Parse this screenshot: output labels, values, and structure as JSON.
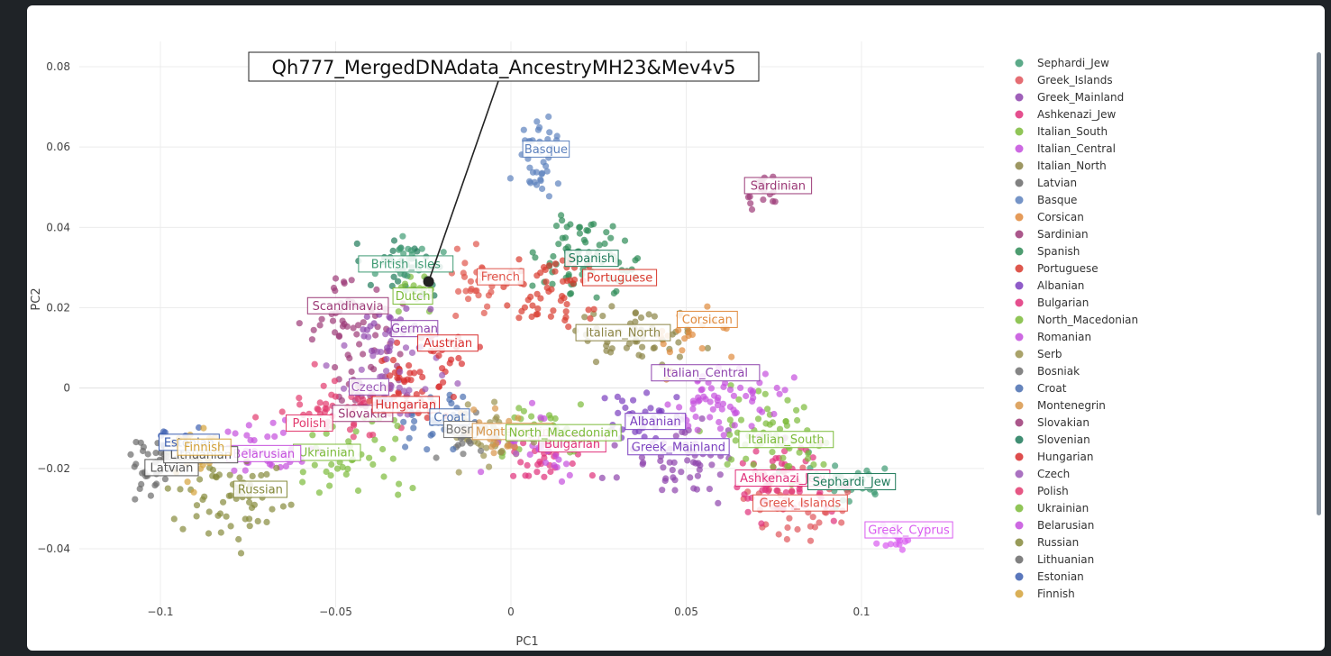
{
  "chart_data": {
    "type": "scatter",
    "xlabel": "PC1",
    "ylabel": "PC2",
    "xlim": [
      -0.125,
      0.135
    ],
    "ylim": [
      -0.05,
      0.085
    ],
    "x_ticks": [
      -0.1,
      -0.05,
      0,
      0.05,
      0.1
    ],
    "x_tick_labels": [
      "−0.1",
      "−0.05",
      "0",
      "0.05",
      "0.1"
    ],
    "y_ticks": [
      -0.04,
      -0.02,
      0,
      0.02,
      0.04,
      0.06,
      0.08
    ],
    "y_tick_labels": [
      "−0.04",
      "−0.02",
      "0",
      "0.02",
      "0.04",
      "0.06",
      "0.08"
    ],
    "grid": true,
    "legend_position": "right",
    "annotation": {
      "text": "Qh777_MergedDNAdata_AncestryMH23&Mev4v5",
      "point": [
        -0.0235,
        0.0265
      ]
    },
    "series": [
      {
        "name": "Sephardi_Jew",
        "color": "#3f9b74",
        "center": [
          0.095,
          -0.024
        ],
        "spread": [
          0.01,
          0.005
        ],
        "n": 30
      },
      {
        "name": "Greek_Islands",
        "color": "#e0545a",
        "center": [
          0.08,
          -0.029
        ],
        "spread": [
          0.01,
          0.006
        ],
        "n": 45
      },
      {
        "name": "Greek_Mainland",
        "color": "#8e44ad",
        "center": [
          0.048,
          -0.018
        ],
        "spread": [
          0.012,
          0.006
        ],
        "n": 55
      },
      {
        "name": "Ashkenazi_Jew",
        "color": "#e0307a",
        "center": [
          0.08,
          -0.024
        ],
        "spread": [
          0.011,
          0.006
        ],
        "n": 60
      },
      {
        "name": "Italian_South",
        "color": "#7cbb3a",
        "center": [
          0.075,
          -0.012
        ],
        "spread": [
          0.012,
          0.007
        ],
        "n": 60
      },
      {
        "name": "Italian_Central",
        "color": "#c44fdd",
        "center": [
          0.06,
          -0.004
        ],
        "spread": [
          0.012,
          0.006
        ],
        "n": 65
      },
      {
        "name": "Italian_North",
        "color": "#8c8546",
        "center": [
          0.035,
          0.012
        ],
        "spread": [
          0.012,
          0.006
        ],
        "n": 50
      },
      {
        "name": "Latvian",
        "color": "#6b6b6b",
        "center": [
          -0.103,
          -0.021
        ],
        "spread": [
          0.005,
          0.005
        ],
        "n": 18
      },
      {
        "name": "Basque",
        "color": "#5d81bd",
        "center": [
          0.008,
          0.058
        ],
        "spread": [
          0.005,
          0.007
        ],
        "n": 38
      },
      {
        "name": "Corsican",
        "color": "#e08a3c",
        "center": [
          0.05,
          0.012
        ],
        "spread": [
          0.008,
          0.006
        ],
        "n": 22
      },
      {
        "name": "Sardinian",
        "color": "#9c3a77",
        "center": [
          0.072,
          0.049
        ],
        "spread": [
          0.004,
          0.004
        ],
        "n": 20
      },
      {
        "name": "Spanish",
        "color": "#2e8b57",
        "center": [
          0.022,
          0.033
        ],
        "spread": [
          0.009,
          0.008
        ],
        "n": 75
      },
      {
        "name": "Portuguese",
        "color": "#d83a2e",
        "center": [
          0.012,
          0.024
        ],
        "spread": [
          0.01,
          0.008
        ],
        "n": 55
      },
      {
        "name": "Albanian",
        "color": "#7b3fbf",
        "center": [
          0.038,
          -0.008
        ],
        "spread": [
          0.008,
          0.005
        ],
        "n": 30
      },
      {
        "name": "Bulgarian",
        "color": "#e0307a",
        "center": [
          0.01,
          -0.017
        ],
        "spread": [
          0.01,
          0.005
        ],
        "n": 35
      },
      {
        "name": "North_Macedonian",
        "color": "#7cbb3a",
        "center": [
          0.01,
          -0.01
        ],
        "spread": [
          0.01,
          0.005
        ],
        "n": 40
      },
      {
        "name": "Romanian",
        "color": "#c44fdd",
        "center": [
          0.005,
          -0.014
        ],
        "spread": [
          0.011,
          0.005
        ],
        "n": 40
      },
      {
        "name": "Serb",
        "color": "#9b9350",
        "center": [
          -0.005,
          -0.012
        ],
        "spread": [
          0.008,
          0.005
        ],
        "n": 35
      },
      {
        "name": "Bosniak",
        "color": "#707070",
        "center": [
          -0.012,
          -0.012
        ],
        "spread": [
          0.006,
          0.005
        ],
        "n": 25
      },
      {
        "name": "Croat",
        "color": "#4a6fb0",
        "center": [
          -0.02,
          -0.008
        ],
        "spread": [
          0.007,
          0.005
        ],
        "n": 25
      },
      {
        "name": "Montenegrin",
        "color": "#d8964a",
        "center": [
          -0.005,
          -0.011
        ],
        "spread": [
          0.006,
          0.004
        ],
        "n": 20
      },
      {
        "name": "Slovakian",
        "color": "#9c3a77",
        "center": [
          -0.04,
          0.004
        ],
        "spread": [
          0.008,
          0.007
        ],
        "n": 35
      },
      {
        "name": "Slovenian",
        "color": "#1f7a5a",
        "center": [
          -0.03,
          0.03
        ],
        "spread": [
          0.008,
          0.005
        ],
        "n": 30
      },
      {
        "name": "Hungarian",
        "color": "#d82e2e",
        "center": [
          -0.03,
          0.0
        ],
        "spread": [
          0.01,
          0.008
        ],
        "n": 45
      },
      {
        "name": "Czech",
        "color": "#9b59b6",
        "center": [
          -0.035,
          0.003
        ],
        "spread": [
          0.01,
          0.008
        ],
        "n": 45
      },
      {
        "name": "Polish",
        "color": "#e23a6e",
        "center": [
          -0.05,
          -0.006
        ],
        "spread": [
          0.012,
          0.006
        ],
        "n": 45
      },
      {
        "name": "Ukrainian",
        "color": "#7cbb3a",
        "center": [
          -0.045,
          -0.016
        ],
        "spread": [
          0.012,
          0.007
        ],
        "n": 40
      },
      {
        "name": "Belarusian",
        "color": "#c44fdd",
        "center": [
          -0.07,
          -0.015
        ],
        "spread": [
          0.01,
          0.006
        ],
        "n": 35
      },
      {
        "name": "Russian",
        "color": "#868a3c",
        "center": [
          -0.08,
          -0.027
        ],
        "spread": [
          0.013,
          0.008
        ],
        "n": 60
      },
      {
        "name": "Lithuanian",
        "color": "#6a6a6a",
        "center": [
          -0.1,
          -0.018
        ],
        "spread": [
          0.005,
          0.004
        ],
        "n": 15
      },
      {
        "name": "Estonian",
        "color": "#3d5fb0",
        "center": [
          -0.095,
          -0.012
        ],
        "spread": [
          0.007,
          0.004
        ],
        "n": 15
      },
      {
        "name": "Finnish",
        "color": "#d4a23a",
        "center": [
          -0.09,
          -0.017
        ],
        "spread": [
          0.006,
          0.006
        ],
        "n": 28
      }
    ],
    "extra_clusters": [
      {
        "label": "Scandinavia",
        "color": "#9c3a77",
        "center": [
          -0.045,
          0.02
        ],
        "spread": [
          0.01,
          0.006
        ],
        "n": 40
      },
      {
        "label": "Dutch",
        "color": "#7cbb3a",
        "center": [
          -0.028,
          0.024
        ],
        "spread": [
          0.004,
          0.004
        ],
        "n": 14
      },
      {
        "label": "British_Isles",
        "color": "#3f9b74",
        "center": [
          -0.03,
          0.032
        ],
        "spread": [
          0.007,
          0.004
        ],
        "n": 22
      },
      {
        "label": "German",
        "color": "#8e44ad",
        "center": [
          -0.032,
          0.015
        ],
        "spread": [
          0.008,
          0.005
        ],
        "n": 25
      },
      {
        "label": "Austrian",
        "color": "#d82e2e",
        "center": [
          -0.02,
          0.01
        ],
        "spread": [
          0.006,
          0.004
        ],
        "n": 15
      },
      {
        "label": "French",
        "color": "#e0544a",
        "center": [
          -0.01,
          0.026
        ],
        "spread": [
          0.008,
          0.006
        ],
        "n": 30
      },
      {
        "label": "Greek_Cyprus",
        "color": "#d95bf0",
        "center": [
          0.11,
          -0.037
        ],
        "spread": [
          0.006,
          0.003
        ],
        "n": 16
      }
    ],
    "labels": [
      {
        "text": "Basque",
        "color": "#5d81bd",
        "at": [
          0.01,
          0.0595
        ]
      },
      {
        "text": "Sardinian",
        "color": "#9c3a77",
        "at": [
          0.0762,
          0.0504
        ]
      },
      {
        "text": "Spanish",
        "color": "#1f7a5a",
        "at": [
          0.023,
          0.0323
        ]
      },
      {
        "text": "Portuguese",
        "color": "#d83a2e",
        "at": [
          0.031,
          0.0275
        ]
      },
      {
        "text": "French",
        "color": "#e0544a",
        "at": [
          -0.003,
          0.0277
        ]
      },
      {
        "text": "British_Isles",
        "color": "#3f9b74",
        "at": [
          -0.03,
          0.0309
        ]
      },
      {
        "text": "Dutch",
        "color": "#7cbb3a",
        "at": [
          -0.028,
          0.0229
        ]
      },
      {
        "text": "Scandinavia",
        "color": "#9c3a77",
        "at": [
          -0.0465,
          0.0205
        ]
      },
      {
        "text": "German",
        "color": "#8e44ad",
        "at": [
          -0.0275,
          0.0148
        ]
      },
      {
        "text": "Austrian",
        "color": "#d82e2e",
        "at": [
          -0.018,
          0.0112
        ]
      },
      {
        "text": "Corsican",
        "color": "#e08a3c",
        "at": [
          0.056,
          0.0171
        ]
      },
      {
        "text": "Italian_North",
        "color": "#8c8546",
        "at": [
          0.032,
          0.0138
        ]
      },
      {
        "text": "Italian_Central",
        "color": "#8e44ad",
        "at": [
          0.0555,
          0.0038
        ]
      },
      {
        "text": "Czech",
        "color": "#9b59b6",
        "at": [
          -0.0405,
          0.0003
        ]
      },
      {
        "text": "Slovakia",
        "color": "#9c3a77",
        "at": [
          -0.0423,
          -0.0063
        ]
      },
      {
        "text": "Hungarian",
        "color": "#d82e2e",
        "at": [
          -0.03,
          -0.0041
        ]
      },
      {
        "text": "Croat",
        "color": "#4a6fb0",
        "at": [
          -0.0175,
          -0.0072
        ]
      },
      {
        "text": "Bosn",
        "color": "#707070",
        "at": [
          -0.0145,
          -0.0103
        ]
      },
      {
        "text": "Montenegrin",
        "color": "#d8964a",
        "at": [
          0.0005,
          -0.0108
        ]
      },
      {
        "text": "Bulgarian",
        "color": "#e0307a",
        "at": [
          0.0175,
          -0.0139
        ]
      },
      {
        "text": "North_Macedonian",
        "color": "#7cbb3a",
        "at": [
          0.015,
          -0.0111
        ]
      },
      {
        "text": "Albanian",
        "color": "#7b3fbf",
        "at": [
          0.0412,
          -0.0083
        ]
      },
      {
        "text": "Greek_Mainland",
        "color": "#7b3fbf",
        "at": [
          0.0478,
          -0.0146
        ]
      },
      {
        "text": "Italian_South",
        "color": "#7cbb3a",
        "at": [
          0.0785,
          -0.0128
        ]
      },
      {
        "text": "Ashkenazi_Jew",
        "color": "#e0307a",
        "at": [
          0.0775,
          -0.0224
        ]
      },
      {
        "text": "Sephardi_Jew",
        "color": "#1f7a5a",
        "at": [
          0.0972,
          -0.0233
        ]
      },
      {
        "text": "Greek_Islands",
        "color": "#e0544a",
        "at": [
          0.0825,
          -0.0286
        ]
      },
      {
        "text": "Greek_Cyprus",
        "color": "#d95bf0",
        "at": [
          0.1135,
          -0.0353
        ]
      },
      {
        "text": "Polish",
        "color": "#e23a6e",
        "at": [
          -0.0575,
          -0.0087
        ]
      },
      {
        "text": "Ukrainian",
        "color": "#7cbb3a",
        "at": [
          -0.0525,
          -0.016
        ]
      },
      {
        "text": "Belarusian",
        "color": "#c44fdd",
        "at": [
          -0.0705,
          -0.0163
        ]
      },
      {
        "text": "Russian",
        "color": "#868a3c",
        "at": [
          -0.0715,
          -0.0252
        ]
      },
      {
        "text": "Latvian",
        "color": "#555",
        "at": [
          -0.0968,
          -0.0198
        ]
      },
      {
        "text": "Lithuanian",
        "color": "#555",
        "at": [
          -0.0885,
          -0.0166
        ]
      },
      {
        "text": "Estonian",
        "color": "#3d5fb0",
        "at": [
          -0.0918,
          -0.0135
        ]
      },
      {
        "text": "Finnish",
        "color": "#d4a23a",
        "at": [
          -0.0875,
          -0.0147
        ]
      }
    ]
  }
}
